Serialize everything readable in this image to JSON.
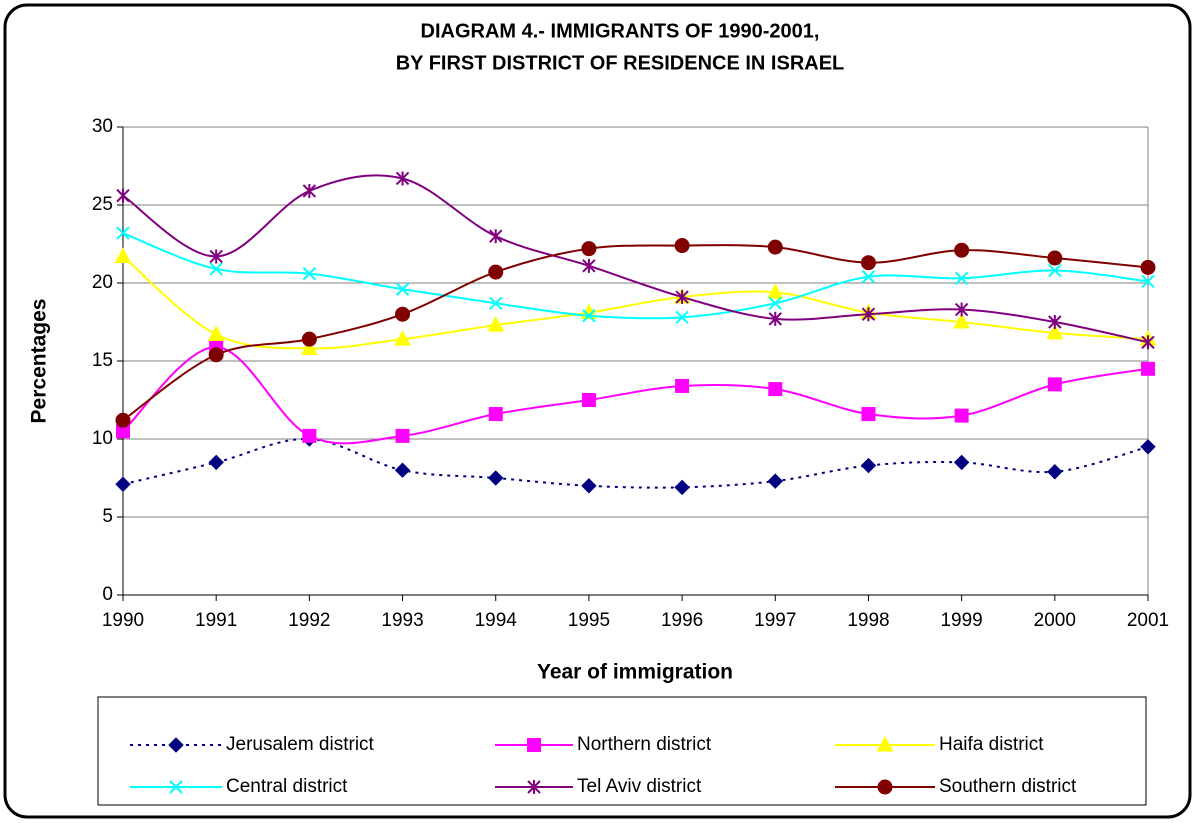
{
  "chart_data": {
    "type": "line",
    "title": [
      "DIAGRAM 4.- IMMIGRANTS OF 1990-2001,",
      "BY FIRST DISTRICT OF RESIDENCE IN ISRAEL"
    ],
    "x_label": "Year of immigration",
    "y_label": "Percentages",
    "categories": [
      "1990",
      "1991",
      "1992",
      "1993",
      "1994",
      "1995",
      "1996",
      "1997",
      "1998",
      "1999",
      "2000",
      "2001"
    ],
    "series": [
      {
        "name": "Jerusalem district",
        "color": "#000080",
        "marker": "diamond",
        "dashed": true,
        "values": [
          7.1,
          8.5,
          10.0,
          8.0,
          7.5,
          7.0,
          6.9,
          7.3,
          8.3,
          8.5,
          7.9,
          9.5
        ]
      },
      {
        "name": "Northern district",
        "color": "#ff00ff",
        "marker": "square",
        "dashed": false,
        "values": [
          10.5,
          15.9,
          10.2,
          10.2,
          11.6,
          12.5,
          13.4,
          13.2,
          11.6,
          11.5,
          13.5,
          14.5
        ]
      },
      {
        "name": "Haifa district",
        "color": "#ffff00",
        "marker": "triangle",
        "dashed": false,
        "values": [
          21.7,
          16.7,
          15.8,
          16.4,
          17.3,
          18.1,
          19.1,
          19.4,
          18.1,
          17.5,
          16.8,
          16.4
        ]
      },
      {
        "name": "Central district",
        "color": "#00ffff",
        "marker": "x",
        "dashed": false,
        "values": [
          23.2,
          20.9,
          20.6,
          19.6,
          18.7,
          17.9,
          17.8,
          18.7,
          20.4,
          20.3,
          20.8,
          20.1
        ]
      },
      {
        "name": "Tel Aviv district",
        "color": "#800080",
        "marker": "asterisk",
        "dashed": false,
        "values": [
          25.6,
          21.7,
          25.9,
          26.7,
          23.0,
          21.1,
          19.1,
          17.7,
          18.0,
          18.3,
          17.5,
          16.2
        ]
      },
      {
        "name": "Southern district",
        "color": "#800000",
        "marker": "circle",
        "dashed": false,
        "values": [
          11.2,
          15.4,
          16.4,
          18.0,
          20.7,
          22.2,
          22.4,
          22.3,
          21.3,
          22.1,
          21.6,
          21.0
        ]
      }
    ],
    "ylim": [
      0,
      30
    ],
    "yticks": [
      0,
      5,
      10,
      15,
      20,
      25,
      30
    ],
    "grid": true,
    "smooth": true,
    "legend": "bottom"
  }
}
